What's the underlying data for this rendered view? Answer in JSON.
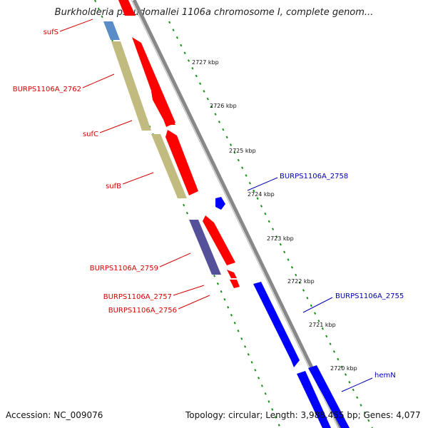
{
  "title": "Burkholderia pseudomallei 1106a chromosome I, complete genom...",
  "footer": {
    "accession": "Accession: NC_009076",
    "topology": "Topology: circular; Length: 3,988,455 bp; Genes: 4,077"
  },
  "ticks": [
    "2727 kbp",
    "2726 kbp",
    "2725 kbp",
    "2724 kbp",
    "2723 kbp",
    "2722 kbp",
    "2721 kbp",
    "2720 kbp"
  ],
  "genes_forward": [
    "BURPS1106A_2758",
    "BURPS1106A_2755",
    "hemN"
  ],
  "genes_reverse": [
    "sufS",
    "BURPS1106A_2762",
    "sufC",
    "sufB",
    "BURPS1106A_2759",
    "BURPS1106A_2757",
    "BURPS1106A_2756"
  ],
  "colors": {
    "forward": "#0000ff",
    "reverse": "#ff0000",
    "cog_olive": "#c2bb80",
    "cog_purple": "#55509a",
    "cog_steel": "#5a8cc8",
    "backbone": "#888888",
    "tick_marks": "#1a8f1a",
    "label_red": "#d40000",
    "label_blue": "#0000b0"
  }
}
